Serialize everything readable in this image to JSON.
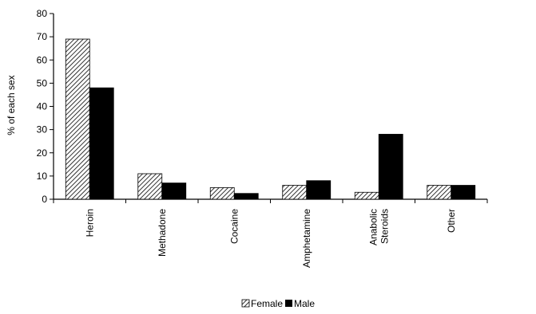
{
  "chart_data": {
    "type": "bar",
    "title": "",
    "xlabel": "",
    "ylabel": "% of each sex",
    "ylim": [
      0,
      80
    ],
    "yticks": [
      0,
      10,
      20,
      30,
      40,
      50,
      60,
      70,
      80
    ],
    "categories": [
      "Heroin",
      "Methadone",
      "Cocaine",
      "Amphetamine",
      "Anabolic|Steroids",
      "Other"
    ],
    "series": [
      {
        "name": "Female",
        "values": [
          69,
          11,
          5,
          6,
          3,
          6
        ],
        "fill": "hatch"
      },
      {
        "name": "Male",
        "values": [
          48,
          7,
          2.5,
          8,
          28,
          6
        ],
        "fill": "#000000"
      }
    ],
    "grid": false,
    "legend": "bottom"
  }
}
